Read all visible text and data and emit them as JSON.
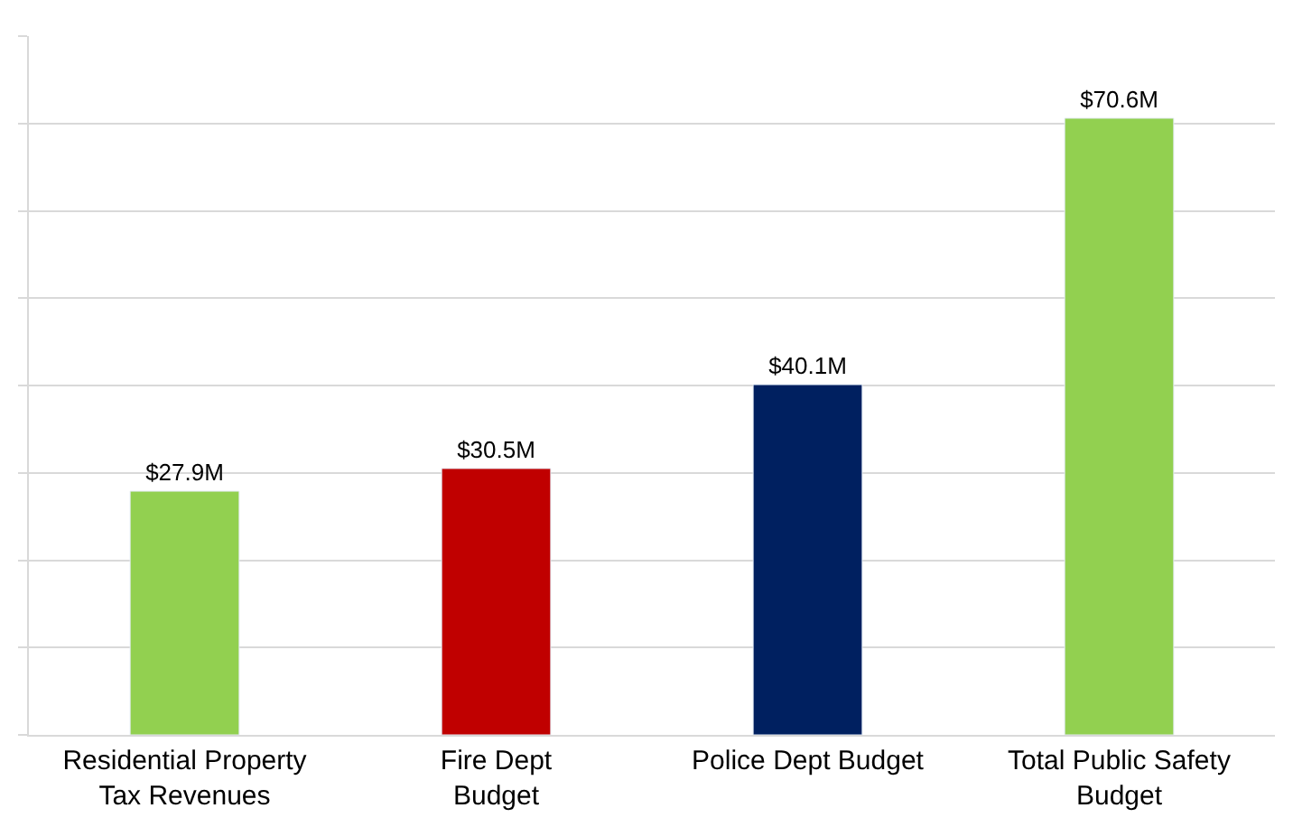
{
  "chart_data": {
    "type": "bar",
    "categories": [
      "Residential Property\nTax Revenues",
      "Fire Dept\nBudget",
      "Police Dept Budget",
      "Total Public Safety\nBudget"
    ],
    "values": [
      27.9,
      30.5,
      40.1,
      70.6
    ],
    "colors": [
      "#92d050",
      "#c00000",
      "#002060",
      "#92d050"
    ],
    "value_labels": [
      "$27.9M",
      "$30.5M",
      "$40.1M",
      "$70.6M"
    ],
    "ylim": [
      0,
      80
    ],
    "yticks": [
      {
        "value": 0,
        "label": null
      },
      {
        "value": 10,
        "label": null
      },
      {
        "value": 20,
        "label": null
      },
      {
        "value": 30,
        "label": null
      },
      {
        "value": 40,
        "label": null
      },
      {
        "value": 50,
        "label": null
      },
      {
        "value": 60,
        "label": null
      },
      {
        "value": 70,
        "label": null
      },
      {
        "value": 80,
        "label": null
      }
    ],
    "grid": "y",
    "legend": false
  }
}
